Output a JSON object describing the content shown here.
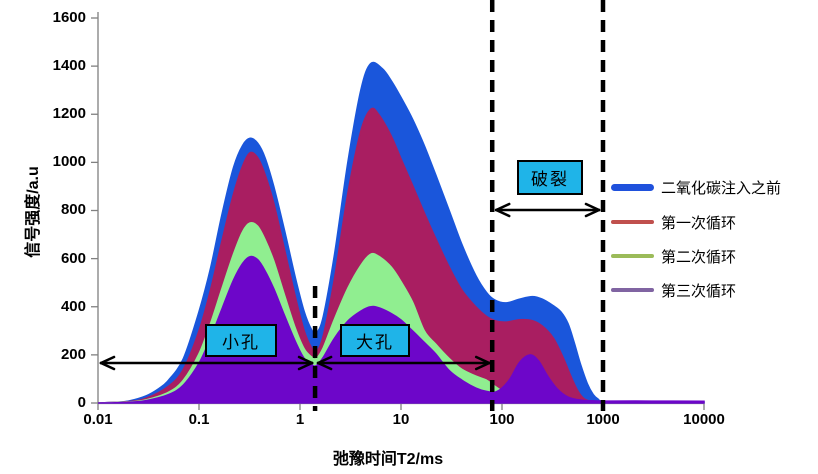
{
  "chart_data": {
    "type": "area",
    "title": "",
    "xlabel": "弛豫时间T2/ms",
    "ylabel": "信号强度/a.u",
    "x_scale": "log",
    "xlim": [
      0.01,
      10000
    ],
    "ylim": [
      0,
      1600
    ],
    "grid": false,
    "legend_position": "right",
    "xticks": [
      "0.01",
      "0.1",
      "1",
      "10",
      "100",
      "1000",
      "10000"
    ],
    "yticks": [
      "1600",
      "1400",
      "1200",
      "1000",
      "800",
      "600",
      "400",
      "200",
      "0"
    ],
    "series": [
      {
        "id": "before-co2",
        "name": "二氧化碳注入之前",
        "fill": "#1A56DB",
        "legend_color": "#1F51DC",
        "points": [
          [
            0.01,
            0
          ],
          [
            0.015,
            3
          ],
          [
            0.02,
            8
          ],
          [
            0.03,
            30
          ],
          [
            0.04,
            60
          ],
          [
            0.05,
            95
          ],
          [
            0.07,
            185
          ],
          [
            0.1,
            380
          ],
          [
            0.13,
            560
          ],
          [
            0.17,
            790
          ],
          [
            0.22,
            980
          ],
          [
            0.27,
            1070
          ],
          [
            0.32,
            1100
          ],
          [
            0.38,
            1080
          ],
          [
            0.45,
            1020
          ],
          [
            0.55,
            900
          ],
          [
            0.7,
            720
          ],
          [
            0.9,
            520
          ],
          [
            1.1,
            380
          ],
          [
            1.3,
            305
          ],
          [
            1.45,
            290
          ],
          [
            1.7,
            360
          ],
          [
            2.2,
            620
          ],
          [
            3,
            1010
          ],
          [
            4,
            1300
          ],
          [
            5,
            1410
          ],
          [
            6.5,
            1390
          ],
          [
            8,
            1340
          ],
          [
            10,
            1270
          ],
          [
            13,
            1180
          ],
          [
            17,
            1070
          ],
          [
            22,
            950
          ],
          [
            30,
            800
          ],
          [
            40,
            660
          ],
          [
            55,
            530
          ],
          [
            70,
            460
          ],
          [
            85,
            428
          ],
          [
            110,
            416
          ],
          [
            150,
            432
          ],
          [
            200,
            442
          ],
          [
            250,
            432
          ],
          [
            320,
            405
          ],
          [
            384,
            378
          ],
          [
            450,
            330
          ],
          [
            520,
            250
          ],
          [
            600,
            160
          ],
          [
            700,
            80
          ],
          [
            800,
            35
          ],
          [
            900,
            15
          ],
          [
            1000,
            8
          ],
          [
            2000,
            5
          ],
          [
            5000,
            4
          ],
          [
            10000,
            3
          ]
        ]
      },
      {
        "id": "cycle-1",
        "name": "第一次循环",
        "fill": "#A91E61",
        "legend_color": "#C0504D",
        "points": [
          [
            0.01,
            0
          ],
          [
            0.02,
            6
          ],
          [
            0.03,
            20
          ],
          [
            0.05,
            70
          ],
          [
            0.07,
            140
          ],
          [
            0.1,
            300
          ],
          [
            0.13,
            470
          ],
          [
            0.17,
            680
          ],
          [
            0.22,
            870
          ],
          [
            0.27,
            985
          ],
          [
            0.32,
            1040
          ],
          [
            0.38,
            1020
          ],
          [
            0.45,
            950
          ],
          [
            0.55,
            830
          ],
          [
            0.7,
            640
          ],
          [
            0.9,
            440
          ],
          [
            1.1,
            300
          ],
          [
            1.3,
            230
          ],
          [
            1.45,
            215
          ],
          [
            1.7,
            280
          ],
          [
            2.2,
            520
          ],
          [
            3,
            880
          ],
          [
            4,
            1130
          ],
          [
            5,
            1220
          ],
          [
            6,
            1200
          ],
          [
            8,
            1110
          ],
          [
            10,
            1015
          ],
          [
            13,
            905
          ],
          [
            17,
            790
          ],
          [
            22,
            685
          ],
          [
            30,
            565
          ],
          [
            40,
            470
          ],
          [
            55,
            400
          ],
          [
            70,
            360
          ],
          [
            85,
            342
          ],
          [
            110,
            336
          ],
          [
            150,
            346
          ],
          [
            200,
            342
          ],
          [
            250,
            320
          ],
          [
            320,
            272
          ],
          [
            400,
            192
          ],
          [
            480,
            112
          ],
          [
            560,
            52
          ],
          [
            650,
            18
          ],
          [
            800,
            5
          ],
          [
            1000,
            2
          ],
          [
            10000,
            0
          ]
        ]
      },
      {
        "id": "cycle-2",
        "name": "第二次循环",
        "fill": "#90EE90",
        "legend_color": "#9BBB59",
        "points": [
          [
            0.01,
            0
          ],
          [
            0.02,
            4
          ],
          [
            0.03,
            13
          ],
          [
            0.05,
            45
          ],
          [
            0.07,
            95
          ],
          [
            0.1,
            205
          ],
          [
            0.13,
            330
          ],
          [
            0.17,
            480
          ],
          [
            0.22,
            620
          ],
          [
            0.27,
            712
          ],
          [
            0.32,
            748
          ],
          [
            0.38,
            735
          ],
          [
            0.45,
            680
          ],
          [
            0.55,
            590
          ],
          [
            0.7,
            450
          ],
          [
            0.9,
            310
          ],
          [
            1.1,
            225
          ],
          [
            1.3,
            192
          ],
          [
            1.45,
            185
          ],
          [
            1.7,
            230
          ],
          [
            2.2,
            350
          ],
          [
            3,
            480
          ],
          [
            4,
            572
          ],
          [
            5,
            618
          ],
          [
            6,
            610
          ],
          [
            8,
            565
          ],
          [
            10,
            505
          ],
          [
            13,
            420
          ],
          [
            17,
            300
          ],
          [
            22,
            245
          ],
          [
            30,
            185
          ],
          [
            40,
            140
          ],
          [
            55,
            112
          ],
          [
            70,
            95
          ],
          [
            85,
            70
          ],
          [
            100,
            50
          ],
          [
            120,
            35
          ],
          [
            150,
            22
          ],
          [
            200,
            13
          ],
          [
            300,
            8
          ],
          [
            500,
            5
          ],
          [
            1000,
            3
          ],
          [
            10000,
            2
          ]
        ]
      },
      {
        "id": "cycle-3",
        "name": "第三次循环",
        "fill": "#6D06C9",
        "legend_color": "#8064A2",
        "points": [
          [
            0.01,
            0
          ],
          [
            0.02,
            3
          ],
          [
            0.03,
            10
          ],
          [
            0.05,
            35
          ],
          [
            0.07,
            75
          ],
          [
            0.1,
            165
          ],
          [
            0.13,
            270
          ],
          [
            0.17,
            395
          ],
          [
            0.22,
            512
          ],
          [
            0.27,
            580
          ],
          [
            0.32,
            608
          ],
          [
            0.38,
            596
          ],
          [
            0.45,
            550
          ],
          [
            0.55,
            475
          ],
          [
            0.7,
            365
          ],
          [
            0.9,
            255
          ],
          [
            1.1,
            185
          ],
          [
            1.3,
            160
          ],
          [
            1.45,
            155
          ],
          [
            1.7,
            190
          ],
          [
            2.2,
            270
          ],
          [
            3,
            342
          ],
          [
            4,
            382
          ],
          [
            5,
            400
          ],
          [
            6,
            396
          ],
          [
            8,
            372
          ],
          [
            10,
            345
          ],
          [
            13,
            300
          ],
          [
            17,
            252
          ],
          [
            22,
            205
          ],
          [
            30,
            135
          ],
          [
            40,
            95
          ],
          [
            55,
            62
          ],
          [
            70,
            48
          ],
          [
            85,
            45
          ],
          [
            100,
            62
          ],
          [
            120,
            100
          ],
          [
            150,
            170
          ],
          [
            190,
            200
          ],
          [
            230,
            175
          ],
          [
            280,
            115
          ],
          [
            350,
            60
          ],
          [
            450,
            25
          ],
          [
            600,
            12
          ],
          [
            800,
            9
          ],
          [
            1000,
            8
          ],
          [
            3000,
            8
          ],
          [
            10000,
            7
          ]
        ]
      }
    ],
    "annotations": {
      "dashed_lines_t2": [
        1.41,
        80,
        1000
      ],
      "box_color": "#1FB4E8",
      "regions": [
        {
          "label": "小孔",
          "t2_from": 0.01,
          "t2_to": 1.41
        },
        {
          "label": "大孔",
          "t2_from": 1.41,
          "t2_to": 80
        },
        {
          "label": "破裂",
          "t2_from": 80,
          "t2_to": 1000
        }
      ]
    }
  }
}
